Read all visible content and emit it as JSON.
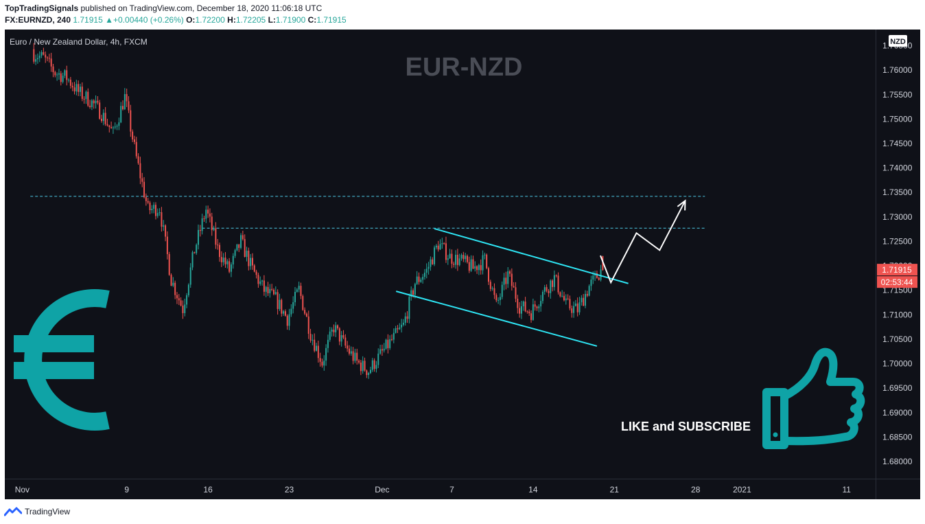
{
  "header": {
    "author": "TopTradingSignals",
    "published_text": "published on TradingView.com, December 18, 2020 11:06:18 UTC",
    "symbol": "FX:EURNZD, 240",
    "last": "1.71915",
    "change": "+0.00440 (+0.26%)",
    "o_label": "O:",
    "o_value": "1.72200",
    "h_label": "H:",
    "h_value": "1.72205",
    "l_label": "L:",
    "l_value": "1.71900",
    "c_label": "C:",
    "c_value": "1.71915"
  },
  "footer": {
    "brand": "TradingView"
  },
  "chart_data": {
    "type": "candlestick",
    "title": "Euro / New Zealand Dollar, 4h, FXCM",
    "watermark": "EUR-NZD",
    "currency_badge": "NZD",
    "price_label": "1.71915",
    "countdown_label": "02:53:44",
    "overlay_text": "LIKE and SUBSCRIBE",
    "ylim": [
      1.6765,
      1.7683
    ],
    "y_ticks": [
      "1.76500",
      "1.76000",
      "1.75500",
      "1.75000",
      "1.74500",
      "1.74000",
      "1.73500",
      "1.73000",
      "1.72500",
      "1.72000",
      "1.71500",
      "1.71000",
      "1.70500",
      "1.70000",
      "1.69500",
      "1.69000",
      "1.68500",
      "1.68000"
    ],
    "x_ticks": [
      "Nov",
      "9",
      "16",
      "23",
      "Dec",
      "7",
      "14",
      "21",
      "28",
      "2021",
      "11"
    ],
    "x_tick_days": [
      -1,
      8,
      15,
      22,
      30,
      36,
      43,
      50,
      57,
      61,
      70
    ],
    "x_domain_days": [
      -2.5,
      72.5
    ],
    "resistance_levels": [
      1.7342,
      1.7277
    ],
    "channel_upper": [
      [
        34.5,
        1.7276
      ],
      [
        51.2,
        1.7164
      ]
    ],
    "channel_lower": [
      [
        31.2,
        1.7148
      ],
      [
        48.5,
        1.7036
      ]
    ],
    "projection": [
      [
        48.8,
        1.7221
      ],
      [
        49.7,
        1.7166
      ],
      [
        51.9,
        1.7267
      ],
      [
        53.9,
        1.7232
      ],
      [
        56.1,
        1.7333
      ]
    ],
    "anchors": [
      [
        0,
        1.7635
      ],
      [
        1,
        1.7625
      ],
      [
        2,
        1.7595
      ],
      [
        3,
        1.7585
      ],
      [
        4,
        1.7555
      ],
      [
        5,
        1.7538
      ],
      [
        6,
        1.7512
      ],
      [
        7,
        1.747
      ],
      [
        8,
        1.7545
      ],
      [
        9,
        1.742
      ],
      [
        10,
        1.7315
      ],
      [
        11,
        1.7318
      ],
      [
        12,
        1.7172
      ],
      [
        13,
        1.7112
      ],
      [
        14,
        1.7232
      ],
      [
        15,
        1.7315
      ],
      [
        16,
        1.7235
      ],
      [
        17,
        1.719
      ],
      [
        18,
        1.725
      ],
      [
        19,
        1.7192
      ],
      [
        20,
        1.715
      ],
      [
        21,
        1.7132
      ],
      [
        22,
        1.7092
      ],
      [
        23,
        1.7152
      ],
      [
        24,
        1.7062
      ],
      [
        25,
        1.7002
      ],
      [
        26,
        1.7075
      ],
      [
        27,
        1.7035
      ],
      [
        28,
        1.7003
      ],
      [
        29,
        1.6985
      ],
      [
        30,
        1.7018
      ],
      [
        31,
        1.7048
      ],
      [
        32,
        1.7078
      ],
      [
        33,
        1.7165
      ],
      [
        34,
        1.719
      ],
      [
        35,
        1.7245
      ],
      [
        36,
        1.7218
      ],
      [
        37,
        1.721
      ],
      [
        38,
        1.7195
      ],
      [
        39,
        1.7212
      ],
      [
        40,
        1.7118
      ],
      [
        41,
        1.7182
      ],
      [
        42,
        1.7118
      ],
      [
        43,
        1.7105
      ],
      [
        44,
        1.7145
      ],
      [
        45,
        1.7175
      ],
      [
        46,
        1.712
      ],
      [
        47,
        1.711
      ],
      [
        48,
        1.7158
      ],
      [
        49,
        1.719
      ]
    ],
    "last_candle": {
      "day": 49,
      "o": 1.722,
      "h": 1.72205,
      "l": 1.719,
      "c": 1.71915
    },
    "colors": {
      "background": "#0f1118",
      "up": "#26a69a",
      "down": "#ef5350",
      "channel": "#2ee6f5",
      "resistance": "#4ecbe6",
      "projection": "#ffffff",
      "accent_teal": "#0fa3a6",
      "price_label_bg": "#ef5350"
    },
    "icons": [
      "euro-symbol-icon",
      "thumbs-up-icon",
      "tradingview-logo-icon"
    ]
  }
}
